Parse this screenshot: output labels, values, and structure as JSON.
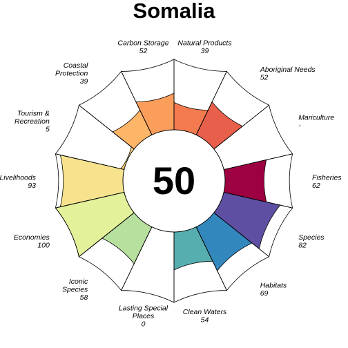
{
  "chart_data": {
    "type": "flower",
    "title": "Somalia",
    "overall_score": "50",
    "max_value": 100,
    "segments": [
      {
        "name": "Fisheries",
        "label_lines": [
          "Fisheries"
        ],
        "score_text": "62",
        "value": 62,
        "color": "#9e0142"
      },
      {
        "name": "Mariculture",
        "label_lines": [
          "Mariculture"
        ],
        "score_text": "-",
        "value": null,
        "color": "#c2294a"
      },
      {
        "name": "Aboriginal Needs",
        "label_lines": [
          "Aboriginal Needs"
        ],
        "score_text": "52",
        "value": 52,
        "color": "#e8604b"
      },
      {
        "name": "Natural Products",
        "label_lines": [
          "Natural Products"
        ],
        "score_text": "39",
        "value": 39,
        "color": "#f47b4f"
      },
      {
        "name": "Carbon Storage",
        "label_lines": [
          "Carbon Storage"
        ],
        "score_text": "52",
        "value": 52,
        "color": "#fb9e5c"
      },
      {
        "name": "Coastal Protection",
        "label_lines": [
          "Coastal",
          "Protection"
        ],
        "score_text": "39",
        "value": 39,
        "color": "#fdb567"
      },
      {
        "name": "Tourism & Recreation",
        "label_lines": [
          "Tourism &",
          "Recreation"
        ],
        "score_text": "5",
        "value": 5,
        "color": "#fdd280"
      },
      {
        "name": "Livelihoods",
        "label_lines": [
          "Livelihoods"
        ],
        "score_text": "93",
        "value": 93,
        "color": "#f7e38e"
      },
      {
        "name": "Economies",
        "label_lines": [
          "Economies"
        ],
        "score_text": "100",
        "value": 100,
        "color": "#e3f19b"
      },
      {
        "name": "Iconic Species",
        "label_lines": [
          "Iconic",
          "Species"
        ],
        "score_text": "58",
        "value": 58,
        "color": "#b7e09f"
      },
      {
        "name": "Lasting Special Places",
        "label_lines": [
          "Lasting Special",
          "Places"
        ],
        "score_text": "0",
        "value": 0,
        "color": "#8fd1a4"
      },
      {
        "name": "Clean Waters",
        "label_lines": [
          "Clean Waters"
        ],
        "score_text": "54",
        "value": 54,
        "color": "#57aeae"
      },
      {
        "name": "Habitats",
        "label_lines": [
          "Habitats"
        ],
        "score_text": "69",
        "value": 69,
        "color": "#3288bd"
      },
      {
        "name": "Species",
        "label_lines": [
          "Species"
        ],
        "score_text": "82",
        "value": 82,
        "color": "#5e4fa2"
      }
    ]
  }
}
